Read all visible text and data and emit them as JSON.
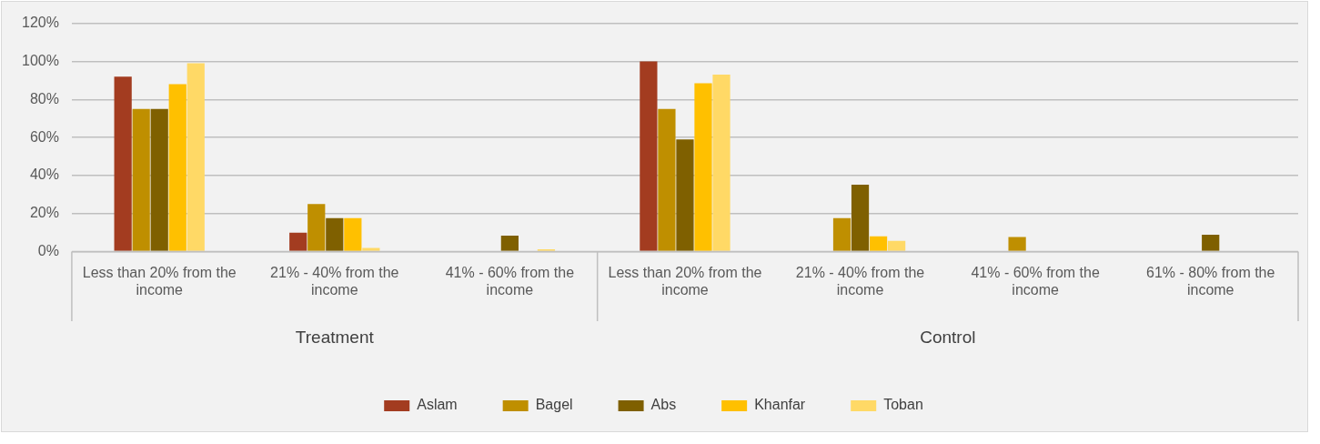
{
  "chart_data": {
    "type": "bar",
    "categories": [
      "Less than 20% from the income",
      "21% - 40% from the income",
      "41% - 60% from the income",
      "Less than 20% from the income",
      "21% - 40% from the income",
      "41% - 60% from the income",
      "61% - 80% from the income"
    ],
    "series": [
      {
        "name": "Aslam",
        "color": "#a33c20",
        "values": [
          92,
          10,
          null,
          100,
          null,
          null,
          null
        ]
      },
      {
        "name": "Bagel",
        "color": "#bf8f00",
        "values": [
          75,
          25,
          null,
          75,
          17.6,
          7.7,
          null
        ]
      },
      {
        "name": "Abs",
        "color": "#7f6000",
        "values": [
          75,
          17.6,
          8.4,
          59,
          35.2,
          null,
          8.9
        ]
      },
      {
        "name": "Khanfar",
        "color": "#ffc000",
        "values": [
          88,
          17.6,
          null,
          88.5,
          8.1,
          null,
          null
        ]
      },
      {
        "name": "Toban",
        "color": "#ffd966",
        "values": [
          99,
          2,
          1.2,
          93,
          5.7,
          null,
          null
        ]
      }
    ],
    "ylim": [
      0,
      120
    ],
    "yticks": [
      {
        "value": 0,
        "label": "0%"
      },
      {
        "value": 20,
        "label": "20%"
      },
      {
        "value": 40,
        "label": "40%"
      },
      {
        "value": 60,
        "label": "60%"
      },
      {
        "value": 80,
        "label": "80%"
      },
      {
        "value": 100,
        "label": "100%"
      },
      {
        "value": 120,
        "label": "120%"
      }
    ],
    "grid": "y",
    "legend": "bottom",
    "annotations": [
      "Treatment",
      "Control"
    ]
  }
}
